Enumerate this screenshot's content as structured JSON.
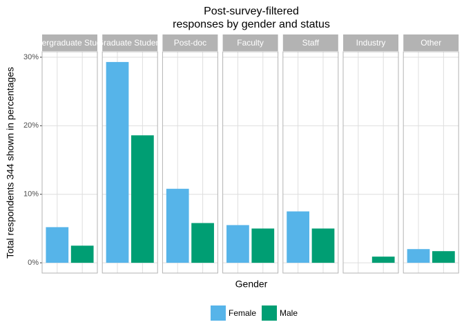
{
  "chart_data": {
    "type": "bar",
    "title": [
      "Post-survey-filtered",
      "responses by gender and status"
    ],
    "xlabel": "Gender",
    "ylabel": "Total respondents 344 shown in percentages",
    "facets": [
      "Undergraduate Student",
      "Graduate Student",
      "Post-doc",
      "Faculty",
      "Staff",
      "Industry",
      "Other"
    ],
    "series": [
      {
        "name": "Female",
        "color": "#56B4E9",
        "values": [
          5.2,
          29.3,
          10.8,
          5.5,
          7.5,
          null,
          2.0
        ]
      },
      {
        "name": "Male",
        "color": "#009E73",
        "values": [
          2.5,
          18.6,
          5.8,
          5.0,
          5.0,
          0.9,
          1.7
        ]
      }
    ],
    "ylim": [
      -1.5,
      30.8
    ],
    "yticks": [
      {
        "value": 0,
        "label": "0%"
      },
      {
        "value": 10,
        "label": "10%"
      },
      {
        "value": 20,
        "label": "20%"
      },
      {
        "value": 30,
        "label": "30%"
      }
    ],
    "grid": true,
    "legend": "bottom"
  }
}
